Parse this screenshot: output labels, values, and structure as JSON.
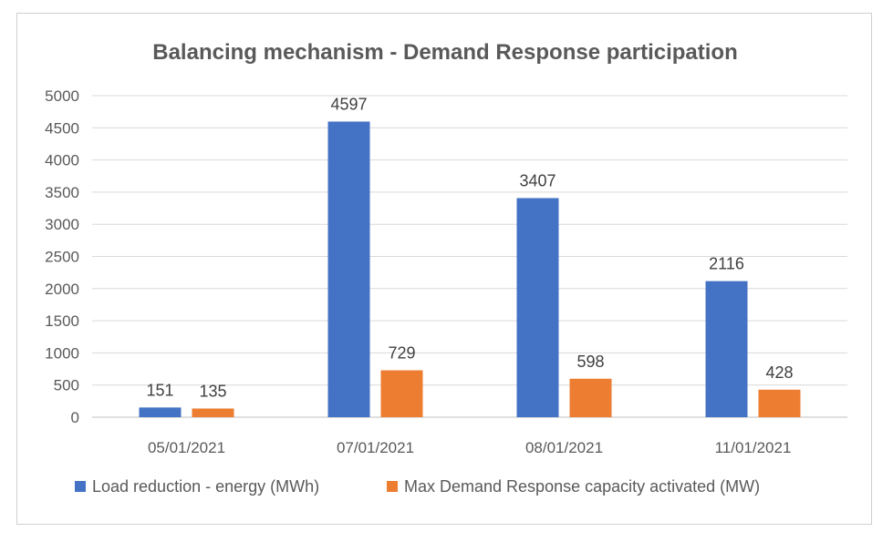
{
  "chart_data": {
    "type": "bar",
    "title": "Balancing mechanism - Demand Response participation",
    "xlabel": "",
    "ylabel": "",
    "categories": [
      "05/01/2021",
      "07/01/2021",
      "08/01/2021",
      "11/01/2021"
    ],
    "series": [
      {
        "name": "Load reduction - energy (MWh)",
        "values": [
          151,
          4597,
          3407,
          2116
        ],
        "color": "#4472C4"
      },
      {
        "name": "Max Demand Response capacity activated (MW)",
        "values": [
          135,
          729,
          598,
          428
        ],
        "color": "#ED7D31"
      }
    ],
    "ylim": [
      0,
      5000
    ],
    "yticks": [
      0,
      500,
      1000,
      1500,
      2000,
      2500,
      3000,
      3500,
      4000,
      4500,
      5000
    ],
    "grid": true,
    "legend": "bottom",
    "data_labels": true
  }
}
